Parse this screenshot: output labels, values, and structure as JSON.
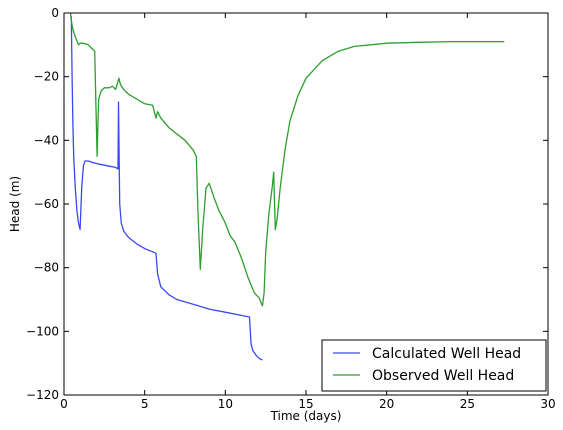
{
  "chart_data": {
    "type": "line",
    "xlabel": "Time (days)",
    "ylabel": "Head (m)",
    "xlim": [
      0,
      30
    ],
    "ylim": [
      -120,
      0
    ],
    "xticks": [
      "0",
      "5",
      "10",
      "15",
      "20",
      "25",
      "30"
    ],
    "yticks": [
      "0",
      "−20",
      "−40",
      "−60",
      "−80",
      "−100",
      "−120"
    ],
    "grid": false,
    "legend_position": "lower-right",
    "series": [
      {
        "name": "Calculated Well Head",
        "color": "#3a48f2",
        "x": [
          0.45,
          0.5,
          0.55,
          0.6,
          0.7,
          0.8,
          0.9,
          1.0,
          1.1,
          1.2,
          1.3,
          1.5,
          1.8,
          2.2,
          2.7,
          3.2,
          3.35,
          3.38,
          3.45,
          3.55,
          3.7,
          4.0,
          4.5,
          5.0,
          5.5,
          5.7,
          5.8,
          6.0,
          6.5,
          7.0,
          8.0,
          9.0,
          10.0,
          11.0,
          11.5,
          11.55,
          11.6,
          11.7,
          11.9,
          12.1,
          12.3
        ],
        "y": [
          -1,
          -20,
          -35,
          -45,
          -55,
          -62,
          -66,
          -68,
          -55,
          -48,
          -46.5,
          -46.5,
          -47,
          -47.5,
          -48,
          -48.5,
          -49,
          -28,
          -60,
          -66,
          -68.5,
          -70.5,
          -72.5,
          -74,
          -75,
          -75.5,
          -82,
          -86,
          -88.5,
          -90,
          -91.5,
          -93,
          -94,
          -95,
          -95.5,
          -100,
          -104,
          -106,
          -107.5,
          -108.5,
          -109
        ]
      },
      {
        "name": "Observed Well Head",
        "color": "#2e9e2e",
        "x": [
          0.4,
          0.5,
          0.6,
          0.7,
          0.9,
          1.0,
          1.2,
          1.5,
          1.7,
          1.9,
          2.05,
          2.1,
          2.15,
          2.3,
          2.5,
          2.8,
          3.0,
          3.2,
          3.4,
          3.5,
          3.7,
          4.0,
          4.5,
          5.0,
          5.5,
          5.7,
          5.8,
          6.0,
          6.5,
          7.0,
          7.5,
          8.0,
          8.2,
          8.3,
          8.45,
          8.6,
          8.8,
          9.0,
          9.3,
          9.6,
          10.0,
          10.3,
          10.6,
          11.0,
          11.4,
          11.8,
          12.1,
          12.3,
          12.4,
          12.5,
          12.7,
          12.9,
          13.0,
          13.1,
          13.2,
          13.4,
          13.7,
          14.0,
          14.5,
          15.0,
          16.0,
          17.0,
          18.0,
          19.0,
          20.0,
          22.0,
          24.0,
          26.0,
          27.3
        ],
        "y": [
          0,
          -4,
          -6,
          -7.5,
          -10,
          -9.5,
          -9.5,
          -10,
          -11,
          -12,
          -45,
          -35,
          -27,
          -24.5,
          -23.5,
          -23.5,
          -23,
          -24,
          -20.5,
          -22.5,
          -24,
          -25.5,
          -27,
          -28.5,
          -29,
          -33,
          -31,
          -33,
          -36,
          -38,
          -40,
          -43,
          -45,
          -62,
          -80.5,
          -68,
          -55,
          -53.5,
          -58,
          -62,
          -66,
          -70,
          -72,
          -77,
          -83,
          -88,
          -89.5,
          -92,
          -88,
          -75,
          -63,
          -55,
          -50,
          -68,
          -65,
          -55,
          -43,
          -34,
          -26,
          -20.5,
          -15,
          -12,
          -10.5,
          -10,
          -9.5,
          -9.2,
          -9,
          -9,
          -9
        ]
      }
    ]
  }
}
